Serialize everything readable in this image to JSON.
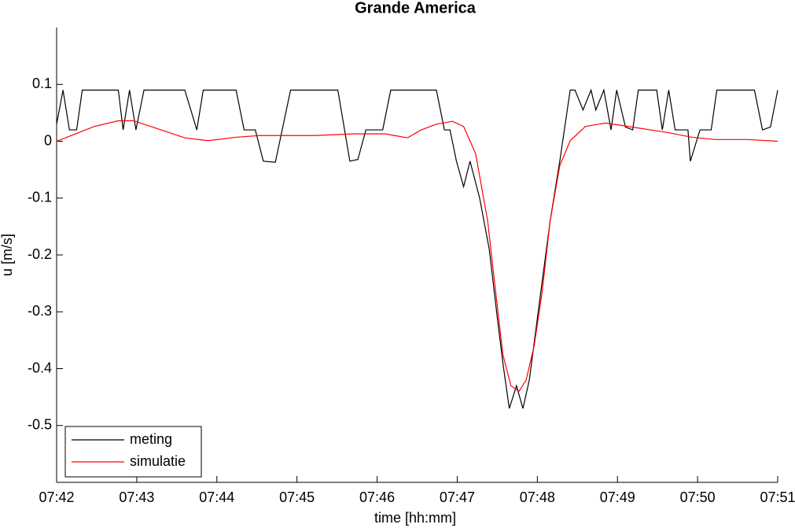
{
  "chart_data": {
    "type": "line",
    "title": "Grande America",
    "xlabel": "time [hh:mm]",
    "ylabel": "u [m/s]",
    "xlim": [
      462,
      471
    ],
    "xticks": [
      {
        "value": 462,
        "label": "07:42"
      },
      {
        "value": 463,
        "label": "07:43"
      },
      {
        "value": 464,
        "label": "07:44"
      },
      {
        "value": 465,
        "label": "07:45"
      },
      {
        "value": 466,
        "label": "07:46"
      },
      {
        "value": 467,
        "label": "07:47"
      },
      {
        "value": 468,
        "label": "07:48"
      },
      {
        "value": 469,
        "label": "07:49"
      },
      {
        "value": 470,
        "label": "07:50"
      },
      {
        "value": 471,
        "label": "07:51"
      }
    ],
    "ylim": [
      -0.6,
      0.2
    ],
    "yticks": [
      -0.5,
      -0.4,
      -0.3,
      -0.2,
      -0.1,
      0,
      0.1
    ],
    "legend": "lower left",
    "series": [
      {
        "name": "meting",
        "color": "#000000",
        "x": [
          462.0,
          462.08,
          462.16,
          462.25,
          462.32,
          462.77,
          462.83,
          462.91,
          462.99,
          463.09,
          463.6,
          463.75,
          463.83,
          464.24,
          464.34,
          464.48,
          464.58,
          464.73,
          464.92,
          465.51,
          465.66,
          465.76,
          465.86,
          466.07,
          466.17,
          466.74,
          466.84,
          466.91,
          466.99,
          467.08,
          467.16,
          467.28,
          467.4,
          467.5,
          467.57,
          467.65,
          467.74,
          467.82,
          467.9,
          468.02,
          468.16,
          468.28,
          468.41,
          468.47,
          468.57,
          468.67,
          468.73,
          468.83,
          468.92,
          468.99,
          469.1,
          469.19,
          469.26,
          469.49,
          469.56,
          469.64,
          469.72,
          469.88,
          469.91,
          470.03,
          470.17,
          470.24,
          470.71,
          470.81,
          470.91,
          471.0
        ],
        "values": [
          0.03,
          0.09,
          0.02,
          0.02,
          0.09,
          0.09,
          0.02,
          0.09,
          0.02,
          0.09,
          0.09,
          0.02,
          0.09,
          0.09,
          0.02,
          0.02,
          -0.035,
          -0.037,
          0.09,
          0.09,
          -0.035,
          -0.032,
          0.02,
          0.02,
          0.09,
          0.09,
          0.02,
          0.02,
          -0.035,
          -0.08,
          -0.035,
          -0.1,
          -0.19,
          -0.31,
          -0.39,
          -0.47,
          -0.43,
          -0.47,
          -0.42,
          -0.29,
          -0.14,
          -0.035,
          0.09,
          0.09,
          0.055,
          0.09,
          0.055,
          0.09,
          0.02,
          0.09,
          0.025,
          0.02,
          0.09,
          0.09,
          0.02,
          0.09,
          0.02,
          0.02,
          -0.035,
          0.02,
          0.02,
          0.09,
          0.09,
          0.02,
          0.025,
          0.09
        ]
      },
      {
        "name": "simulatie",
        "color": "#ff0000",
        "x": [
          462.0,
          462.18,
          462.47,
          462.77,
          462.96,
          463.26,
          463.6,
          463.89,
          464.24,
          464.53,
          465.22,
          465.71,
          466.1,
          466.38,
          466.55,
          466.74,
          466.94,
          467.08,
          467.23,
          467.38,
          467.48,
          467.57,
          467.67,
          467.77,
          467.86,
          467.96,
          468.06,
          468.16,
          468.28,
          468.41,
          468.6,
          468.85,
          469.14,
          469.64,
          469.93,
          470.22,
          470.62,
          471.0
        ],
        "values": [
          0,
          0.01,
          0.026,
          0.036,
          0.036,
          0.022,
          0.006,
          0.001,
          0.007,
          0.01,
          0.01,
          0.013,
          0.013,
          0.006,
          0.02,
          0.03,
          0.035,
          0.026,
          -0.022,
          -0.14,
          -0.265,
          -0.375,
          -0.43,
          -0.44,
          -0.42,
          -0.36,
          -0.265,
          -0.14,
          -0.043,
          0.001,
          0.026,
          0.032,
          0.026,
          0.015,
          0.007,
          0.003,
          0.003,
          0
        ]
      }
    ]
  }
}
